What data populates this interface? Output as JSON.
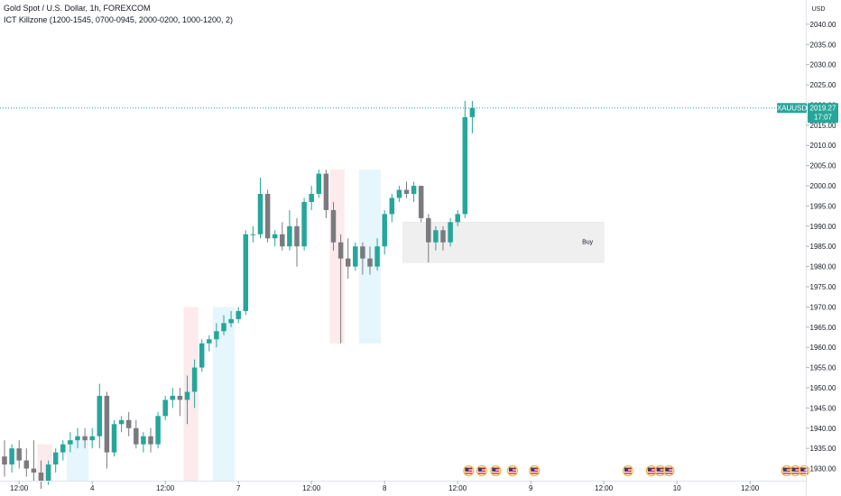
{
  "header": {
    "title": "Gold Spot / U.S. Dollar, 1h, FOREXCOM",
    "indicator": "ICT Killzone (1200-1545, 0700-0945, 2000-0200, 1000-1200, 2)"
  },
  "price_axis": {
    "unit": "USD",
    "symbol": "XAUUSD",
    "last_price": "2019.27",
    "countdown": "17:07"
  },
  "zone": {
    "label": "Buy",
    "top": 1991,
    "bottom": 1981
  },
  "colors": {
    "up": "#26a69a",
    "down": "#7b7b7f",
    "price_line": "#26a69a",
    "killzone_red": "#fde8ea",
    "killzone_blue": "#e3f5fd",
    "zone_fill": "#efefef"
  },
  "chart_data": {
    "type": "candlestick",
    "ylim": [
      1927,
      2046
    ],
    "y_ticks": [
      1930,
      1935,
      1940,
      1945,
      1950,
      1955,
      1960,
      1965,
      1970,
      1975,
      1980,
      1985,
      1990,
      1995,
      2000,
      2005,
      2010,
      2015,
      2020,
      2025,
      2030,
      2035,
      2040
    ],
    "y_tick_labels": [
      "1930.00",
      "1935.00",
      "1940.00",
      "1945.00",
      "1950.00",
      "1955.00",
      "1960.00",
      "1965.00",
      "1970.00",
      "1975.00",
      "1980.00",
      "1985.00",
      "1990.00",
      "1995.00",
      "2000.00",
      "2005.00",
      "2010.00",
      "2015.00",
      "2020.00",
      "2025.00",
      "2030.00",
      "2035.00",
      "2040.00"
    ],
    "x_tick_labels": [
      "12:00",
      "4",
      "12:00",
      "7",
      "12:00",
      "8",
      "12:00",
      "9",
      "12:00",
      "10",
      "12:00"
    ],
    "x_tick_index": [
      2,
      12,
      22,
      32,
      42,
      52,
      62,
      72,
      82,
      92,
      102
    ],
    "candles": [
      {
        "o": 1933,
        "h": 1937,
        "l": 1928,
        "c": 1931
      },
      {
        "o": 1931,
        "h": 1936,
        "l": 1929,
        "c": 1935
      },
      {
        "o": 1935,
        "h": 1937,
        "l": 1930,
        "c": 1932
      },
      {
        "o": 1932,
        "h": 1935,
        "l": 1928,
        "c": 1930
      },
      {
        "o": 1930,
        "h": 1937,
        "l": 1927,
        "c": 1929
      },
      {
        "o": 1929,
        "h": 1932,
        "l": 1925,
        "c": 1927
      },
      {
        "o": 1927,
        "h": 1932,
        "l": 1926,
        "c": 1931
      },
      {
        "o": 1931,
        "h": 1935,
        "l": 1929,
        "c": 1934
      },
      {
        "o": 1934,
        "h": 1937,
        "l": 1932,
        "c": 1936
      },
      {
        "o": 1936,
        "h": 1939,
        "l": 1934,
        "c": 1937
      },
      {
        "o": 1937,
        "h": 1940,
        "l": 1935,
        "c": 1938
      },
      {
        "o": 1938,
        "h": 1940,
        "l": 1935,
        "c": 1937
      },
      {
        "o": 1937,
        "h": 1940,
        "l": 1935,
        "c": 1938
      },
      {
        "o": 1938,
        "h": 1951,
        "l": 1935,
        "c": 1948
      },
      {
        "o": 1948,
        "h": 1949,
        "l": 1930,
        "c": 1934
      },
      {
        "o": 1934,
        "h": 1942,
        "l": 1933,
        "c": 1941
      },
      {
        "o": 1941,
        "h": 1943,
        "l": 1939,
        "c": 1942
      },
      {
        "o": 1942,
        "h": 1944,
        "l": 1938,
        "c": 1940
      },
      {
        "o": 1940,
        "h": 1942,
        "l": 1935,
        "c": 1936
      },
      {
        "o": 1936,
        "h": 1939,
        "l": 1934,
        "c": 1938
      },
      {
        "o": 1938,
        "h": 1940,
        "l": 1934,
        "c": 1936
      },
      {
        "o": 1936,
        "h": 1944,
        "l": 1935,
        "c": 1943
      },
      {
        "o": 1943,
        "h": 1948,
        "l": 1942,
        "c": 1947
      },
      {
        "o": 1947,
        "h": 1950,
        "l": 1945,
        "c": 1948
      },
      {
        "o": 1948,
        "h": 1950,
        "l": 1943,
        "c": 1947
      },
      {
        "o": 1947,
        "h": 1953,
        "l": 1941,
        "c": 1949
      },
      {
        "o": 1949,
        "h": 1957,
        "l": 1945,
        "c": 1955
      },
      {
        "o": 1955,
        "h": 1962,
        "l": 1954,
        "c": 1961
      },
      {
        "o": 1961,
        "h": 1963,
        "l": 1959,
        "c": 1962
      },
      {
        "o": 1962,
        "h": 1966,
        "l": 1960,
        "c": 1964
      },
      {
        "o": 1964,
        "h": 1968,
        "l": 1963,
        "c": 1966
      },
      {
        "o": 1966,
        "h": 1969,
        "l": 1965,
        "c": 1967
      },
      {
        "o": 1967,
        "h": 1970,
        "l": 1966,
        "c": 1969
      },
      {
        "o": 1969,
        "h": 1989,
        "l": 1968,
        "c": 1988
      },
      {
        "o": 1988,
        "h": 1990,
        "l": 1986,
        "c": 1988
      },
      {
        "o": 1988,
        "h": 2002,
        "l": 1987,
        "c": 1998
      },
      {
        "o": 1998,
        "h": 1999,
        "l": 1986,
        "c": 1987
      },
      {
        "o": 1987,
        "h": 1989,
        "l": 1985,
        "c": 1988
      },
      {
        "o": 1988,
        "h": 1991,
        "l": 1984,
        "c": 1985
      },
      {
        "o": 1985,
        "h": 1994,
        "l": 1984,
        "c": 1990
      },
      {
        "o": 1990,
        "h": 1992,
        "l": 1980,
        "c": 1985
      },
      {
        "o": 1985,
        "h": 1997,
        "l": 1984,
        "c": 1996
      },
      {
        "o": 1996,
        "h": 2000,
        "l": 1994,
        "c": 1998
      },
      {
        "o": 1998,
        "h": 2004,
        "l": 1997,
        "c": 2003
      },
      {
        "o": 2003,
        "h": 2004,
        "l": 1992,
        "c": 1994
      },
      {
        "o": 1994,
        "h": 1996,
        "l": 1984,
        "c": 1986
      },
      {
        "o": 1986,
        "h": 1988,
        "l": 1961,
        "c": 1982
      },
      {
        "o": 1982,
        "h": 1987,
        "l": 1977,
        "c": 1980
      },
      {
        "o": 1980,
        "h": 1986,
        "l": 1979,
        "c": 1985
      },
      {
        "o": 1985,
        "h": 1986,
        "l": 1978,
        "c": 1982
      },
      {
        "o": 1982,
        "h": 1985,
        "l": 1978,
        "c": 1980
      },
      {
        "o": 1980,
        "h": 1987,
        "l": 1979,
        "c": 1985
      },
      {
        "o": 1985,
        "h": 1994,
        "l": 1983,
        "c": 1993
      },
      {
        "o": 1993,
        "h": 1998,
        "l": 1991,
        "c": 1997
      },
      {
        "o": 1997,
        "h": 2000,
        "l": 1996,
        "c": 1999
      },
      {
        "o": 1999,
        "h": 2001,
        "l": 1997,
        "c": 1998
      },
      {
        "o": 1998,
        "h": 2001,
        "l": 1996,
        "c": 2000
      },
      {
        "o": 2000,
        "h": 2000,
        "l": 1991,
        "c": 1992
      },
      {
        "o": 1992,
        "h": 1993,
        "l": 1981,
        "c": 1986
      },
      {
        "o": 1986,
        "h": 1990,
        "l": 1984,
        "c": 1989
      },
      {
        "o": 1989,
        "h": 1990,
        "l": 1984,
        "c": 1986
      },
      {
        "o": 1986,
        "h": 1992,
        "l": 1985,
        "c": 1991
      },
      {
        "o": 1991,
        "h": 1994,
        "l": 1990,
        "c": 1993
      },
      {
        "o": 1993,
        "h": 2021,
        "l": 1992,
        "c": 2017
      },
      {
        "o": 2017,
        "h": 2021,
        "l": 2013,
        "c": 2019.27
      }
    ],
    "killzones": [
      {
        "from": 4.5,
        "to": 6.5,
        "color": "red"
      },
      {
        "from": 8.5,
        "to": 11.5,
        "color": "blue"
      },
      {
        "from": 24.5,
        "to": 26.5,
        "color": "red"
      },
      {
        "from": 28.5,
        "to": 31.5,
        "color": "blue"
      },
      {
        "from": 44.5,
        "to": 46.5,
        "color": "red"
      },
      {
        "from": 48.5,
        "to": 51.5,
        "color": "blue"
      }
    ],
    "killzone_ranges": [
      [
        1936,
        1927
      ],
      [
        1937,
        1927
      ],
      [
        1970,
        1927
      ],
      [
        1970,
        1927
      ],
      [
        2004,
        1961
      ],
      [
        2004,
        1961
      ]
    ],
    "zone_start_index": 54.5,
    "zone_end_index": 82,
    "event_flags_index": [
      63.5,
      65.3,
      67.2,
      69.5,
      72.5,
      85.3,
      88.5,
      89.7,
      90.9,
      107.0,
      108.2,
      109.4
    ]
  }
}
